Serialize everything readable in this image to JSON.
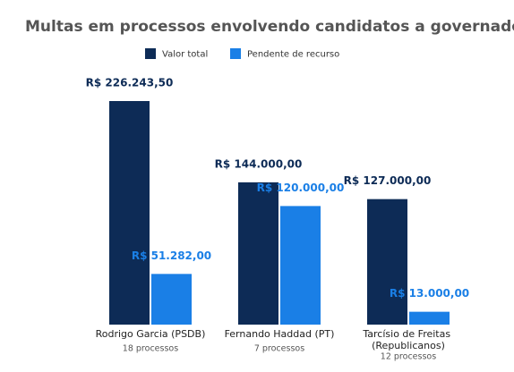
{
  "chart_data": {
    "type": "bar",
    "title": "Multas em processos envolvendo candidatos a governador",
    "categories": [
      "Rodrigo Garcia (PSDB)",
      "Fernando Haddad (PT)",
      "Tarcísio de Freitas (Republicanos)"
    ],
    "category_notes": [
      "18 processos",
      "7 processos",
      "12 processos"
    ],
    "series": [
      {
        "name": "Valor total",
        "color": "#0d2b56",
        "values": [
          226243.5,
          144000,
          127000
        ],
        "value_labels": [
          "R$ 226.243,50",
          "R$ 144.000,00",
          "R$ 127.000,00"
        ]
      },
      {
        "name": "Pendente de recurso",
        "color": "#1a7fe6",
        "values": [
          51282,
          120000,
          13000
        ],
        "value_labels": [
          "R$ 51.282,00",
          "R$ 120.000,00",
          "R$ 13.000,00"
        ]
      }
    ]
  }
}
